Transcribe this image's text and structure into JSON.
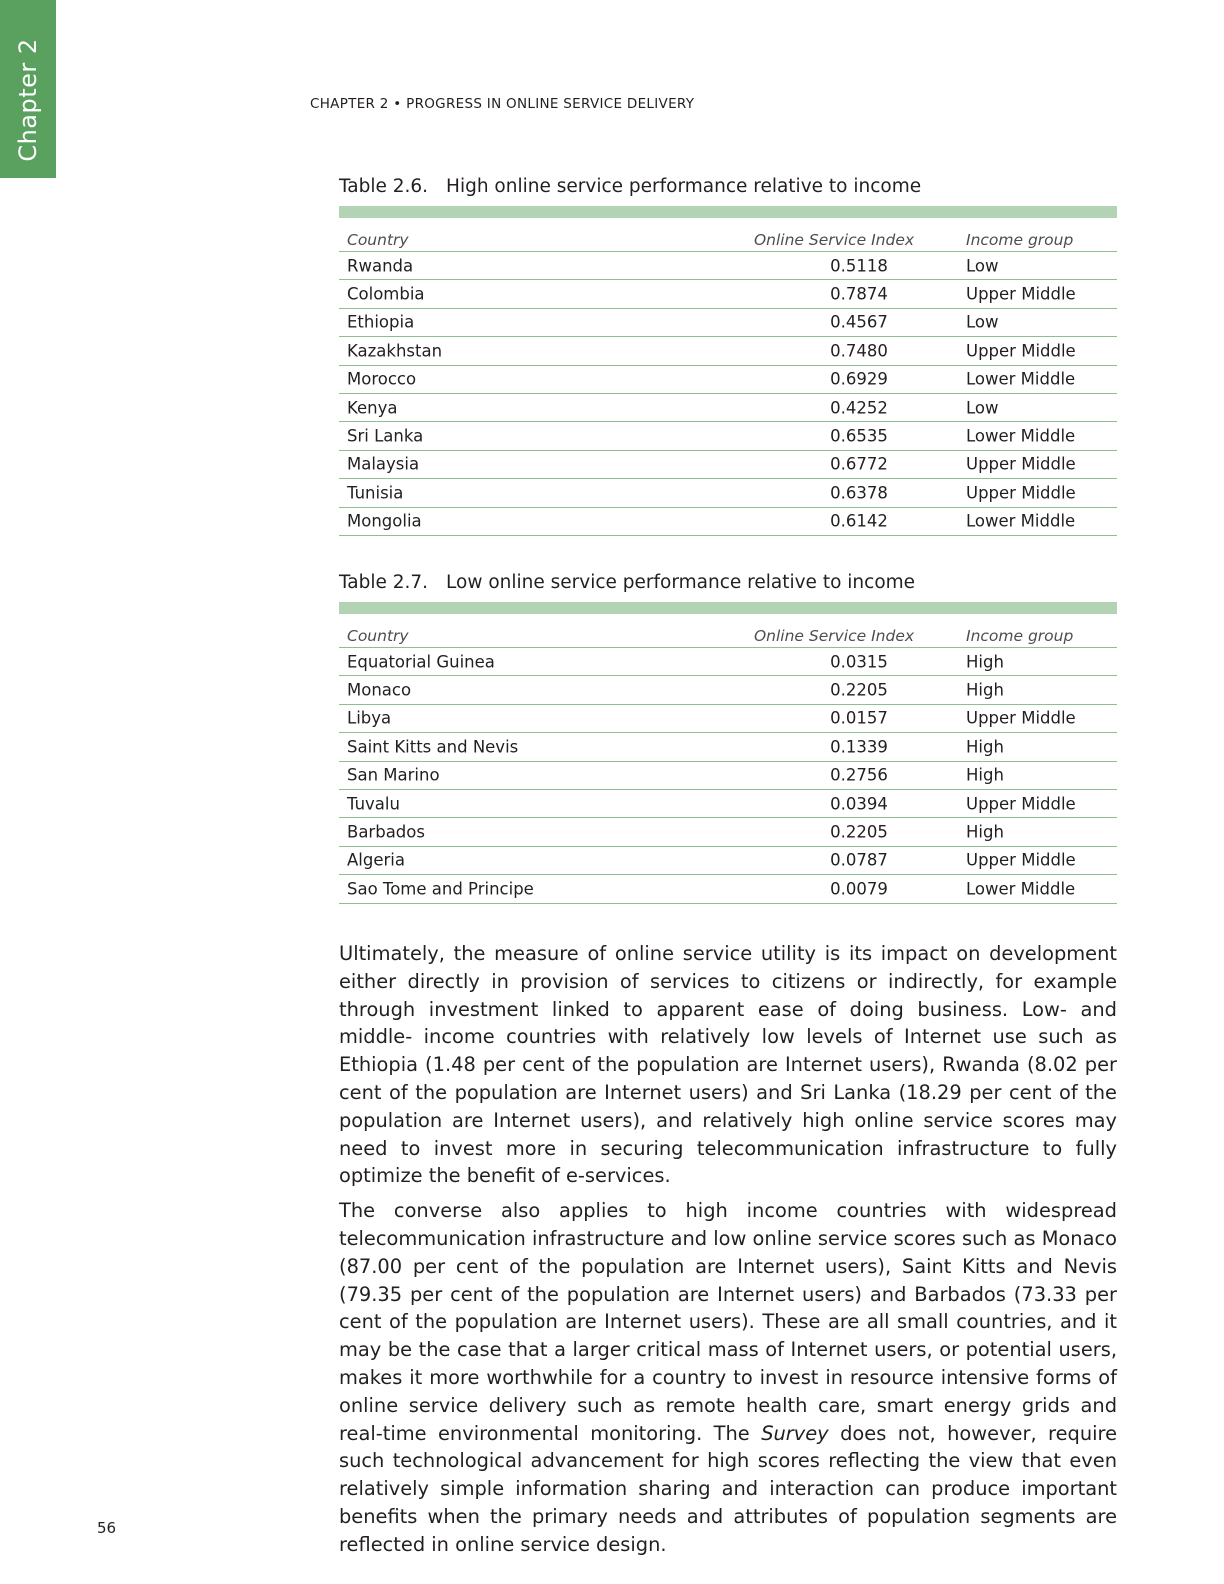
{
  "chapter_tab": "Chapter 2",
  "running_head": "CHAPTER 2 • PROGRESS IN ONLINE SERVICE DELIVERY",
  "table_1": {
    "number": "Table 2.6.",
    "title": "High online service performance relative to income",
    "columns": [
      "Country",
      "Online Service Index",
      "Income group"
    ],
    "rows": [
      [
        "Rwanda",
        "0.5118",
        "Low"
      ],
      [
        "Colombia",
        "0.7874",
        "Upper Middle"
      ],
      [
        "Ethiopia",
        "0.4567",
        "Low"
      ],
      [
        "Kazakhstan",
        "0.7480",
        "Upper Middle"
      ],
      [
        "Morocco",
        "0.6929",
        "Lower Middle"
      ],
      [
        "Kenya",
        "0.4252",
        "Low"
      ],
      [
        "Sri Lanka",
        "0.6535",
        "Lower Middle"
      ],
      [
        "Malaysia",
        "0.6772",
        "Upper Middle"
      ],
      [
        "Tunisia",
        "0.6378",
        "Upper Middle"
      ],
      [
        "Mongolia",
        "0.6142",
        "Lower Middle"
      ]
    ]
  },
  "table_2": {
    "number": "Table 2.7.",
    "title": "Low online service performance relative to income",
    "columns": [
      "Country",
      "Online Service Index",
      "Income group"
    ],
    "rows": [
      [
        "Equatorial Guinea",
        "0.0315",
        "High"
      ],
      [
        "Monaco",
        "0.2205",
        "High"
      ],
      [
        "Libya",
        "0.0157",
        "Upper Middle"
      ],
      [
        "Saint Kitts and Nevis",
        "0.1339",
        "High"
      ],
      [
        "San Marino",
        "0.2756",
        "High"
      ],
      [
        "Tuvalu",
        "0.0394",
        "Upper Middle"
      ],
      [
        "Barbados",
        "0.2205",
        "High"
      ],
      [
        "Algeria",
        "0.0787",
        "Upper Middle"
      ],
      [
        "Sao Tome and Principe",
        "0.0079",
        "Lower Middle"
      ]
    ]
  },
  "paragraph_1": "Ultimately, the measure of online service utility is its impact on development either directly in provision of services to citizens or indirectly, for example through investment linked to apparent ease of doing business. Low- and middle- income countries with relatively low levels of Internet use such as Ethiopia (1.48 per cent of the population are Internet users), Rwanda (8.02 per cent of the population are Internet users) and Sri Lanka (18.29 per cent of the population are Internet users), and relatively high online service scores may need to invest more in securing telecommunication infrastructure to fully optimize the benefit of e-services.",
  "paragraph_2_lead": "The converse also applies to high income countries with widespread telecommunication infrastructure and low online service scores such as Monaco (87.00 per cent of the population are Internet users), Saint Kitts and Nevis (79.35 per cent of the population are Internet users) and Barbados (73.33 per cent of the population are Internet users). These are all small countries, and it may be the case that a larger critical mass of Internet users, or potential users, makes it more worthwhile for a country to invest in resource intensive forms of online service delivery such as remote health care, smart energy grids and real-time environmental monitoring. The ",
  "paragraph_2_italic": "Survey",
  "paragraph_2_tail": " does not, however, require such technological advancement for high scores reflecting the view that even relatively simple information sharing and interaction can produce important benefits when the primary needs and attributes of population segments are reflected in online service design.",
  "page_number": "56"
}
